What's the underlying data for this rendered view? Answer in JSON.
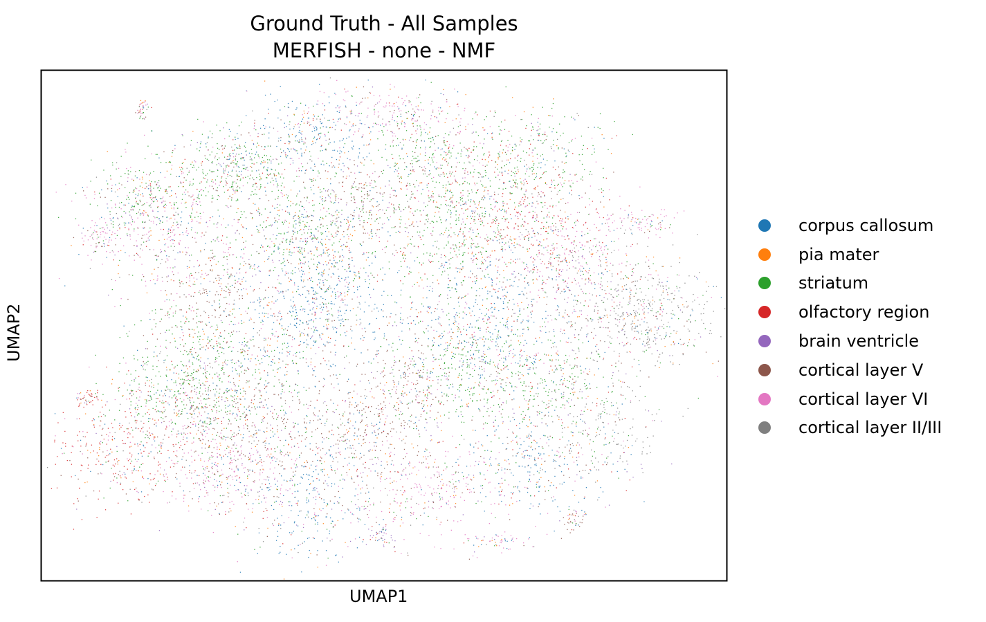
{
  "chart_data": {
    "type": "scatter",
    "title_line1": "Ground Truth - All Samples",
    "title_line2": "MERFISH - none - NMF",
    "xlabel": "UMAP1",
    "ylabel": "UMAP2",
    "xticks": [],
    "yticks": [],
    "legend_position": "right",
    "series": [
      {
        "name": "corpus callosum",
        "color": "#1f77b4"
      },
      {
        "name": "pia mater",
        "color": "#ff7f0e"
      },
      {
        "name": "striatum",
        "color": "#2ca02c"
      },
      {
        "name": "olfactory region",
        "color": "#d62728"
      },
      {
        "name": "brain ventricle",
        "color": "#9467bd"
      },
      {
        "name": "cortical layer V",
        "color": "#8c564b"
      },
      {
        "name": "cortical layer VI",
        "color": "#e377c2"
      },
      {
        "name": "cortical layer II/III",
        "color": "#7f7f7f"
      }
    ]
  }
}
